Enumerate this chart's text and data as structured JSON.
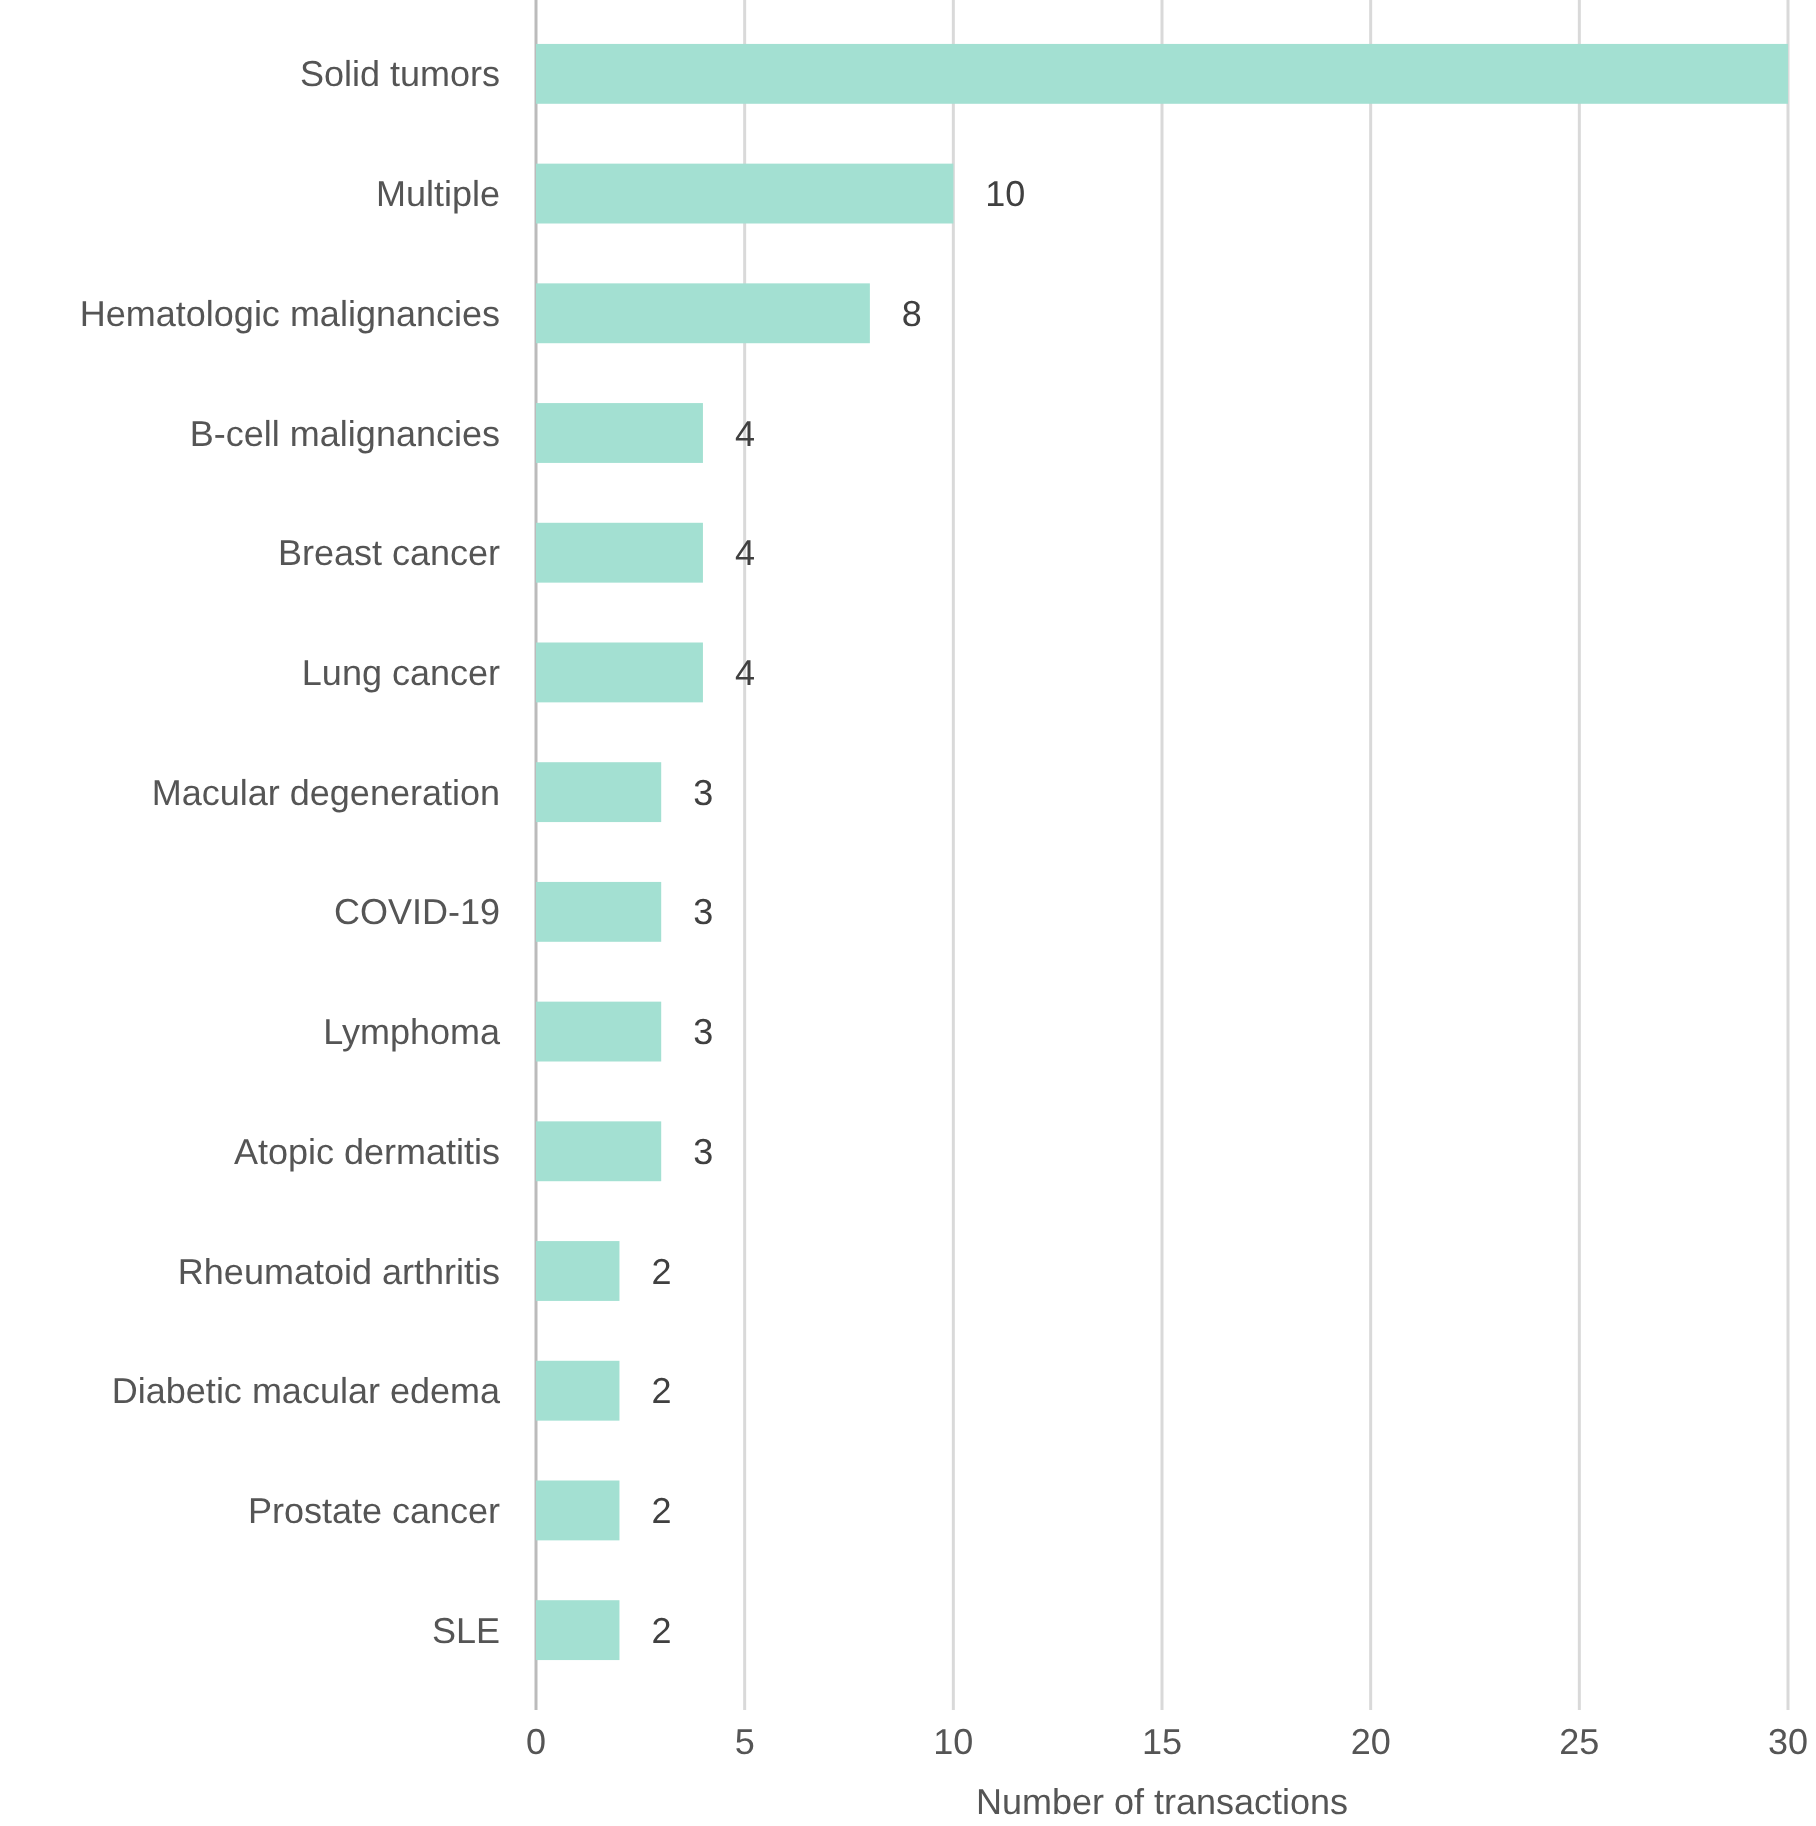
{
  "chart_data": {
    "type": "bar",
    "orientation": "horizontal",
    "xlabel": "Number of transactions",
    "categories": [
      "Solid tumors",
      "Multiple",
      "Hematologic malignancies",
      "B-cell malignancies",
      "Breast cancer",
      "Lung cancer",
      "Macular degeneration",
      "COVID-19",
      "Lymphoma",
      "Atopic dermatitis",
      "Rheumatoid arthritis",
      "Diabetic macular edema",
      "Prostate cancer",
      "SLE"
    ],
    "values": [
      30,
      10,
      8,
      4,
      4,
      4,
      3,
      3,
      3,
      3,
      2,
      2,
      2,
      2
    ],
    "value_labels": [
      null,
      "10",
      "8",
      "4",
      "4",
      "4",
      "3",
      "3",
      "3",
      "3",
      "2",
      "2",
      "2",
      "2"
    ],
    "color": "#a3e0d2",
    "xlim": [
      0,
      30
    ],
    "xticks": [
      0,
      5,
      10,
      15,
      20,
      25,
      30
    ],
    "grid": "x"
  }
}
